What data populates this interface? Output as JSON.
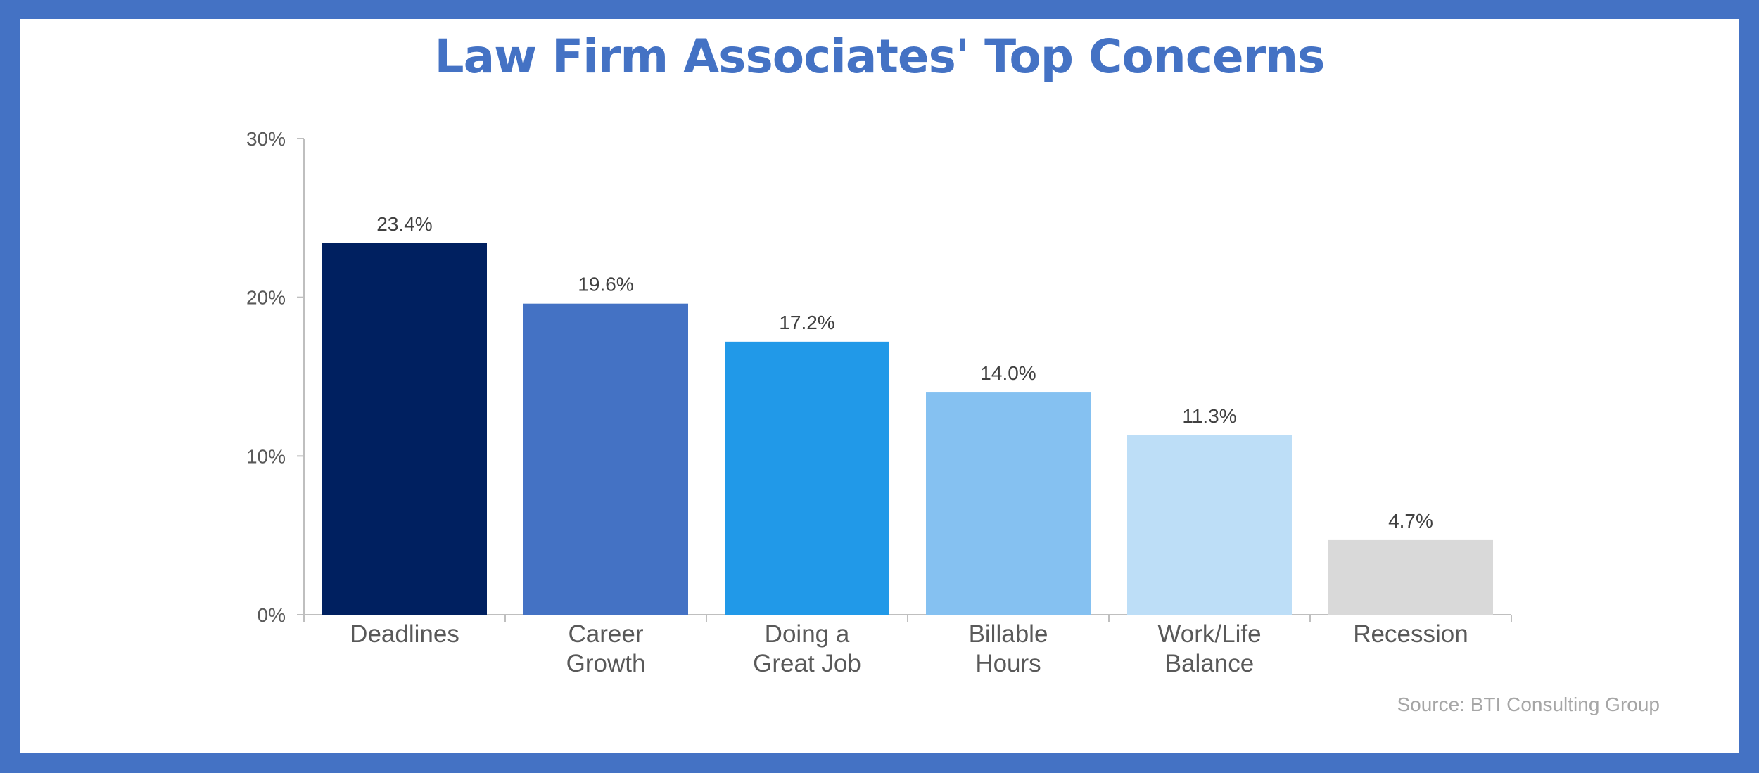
{
  "chart_data": {
    "type": "bar",
    "title": "Law Firm Associates' Top Concerns",
    "categories": [
      "Deadlines",
      "Career Growth",
      "Doing a Great Job",
      "Billable Hours",
      "Work/Life Balance",
      "Recession"
    ],
    "category_lines": [
      [
        "Deadlines"
      ],
      [
        "Career",
        "Growth"
      ],
      [
        "Doing a",
        "Great Job"
      ],
      [
        "Billable",
        "Hours"
      ],
      [
        "Work/Life",
        "Balance"
      ],
      [
        "Recession"
      ]
    ],
    "values": [
      23.4,
      19.6,
      17.2,
      14.0,
      11.3,
      4.7
    ],
    "data_labels": [
      "23.4%",
      "19.6%",
      "17.2%",
      "14.0%",
      "11.3%",
      "4.7%"
    ],
    "bar_colors": [
      "#002060",
      "#4472c4",
      "#2199e8",
      "#85c1f1",
      "#bddef7",
      "#d9d9d9"
    ],
    "ylim": [
      0,
      30
    ],
    "yticks": [
      0,
      10,
      20,
      30
    ],
    "ytick_labels": [
      "0%",
      "10%",
      "20%",
      "30%"
    ],
    "xlabel": "",
    "ylabel": "",
    "grid": false,
    "legend": "none",
    "source": "Source: BTI Consulting Group"
  },
  "colors": {
    "frame": "#4472c4",
    "title": "#4472c4",
    "axis": "#bfbfbf"
  }
}
